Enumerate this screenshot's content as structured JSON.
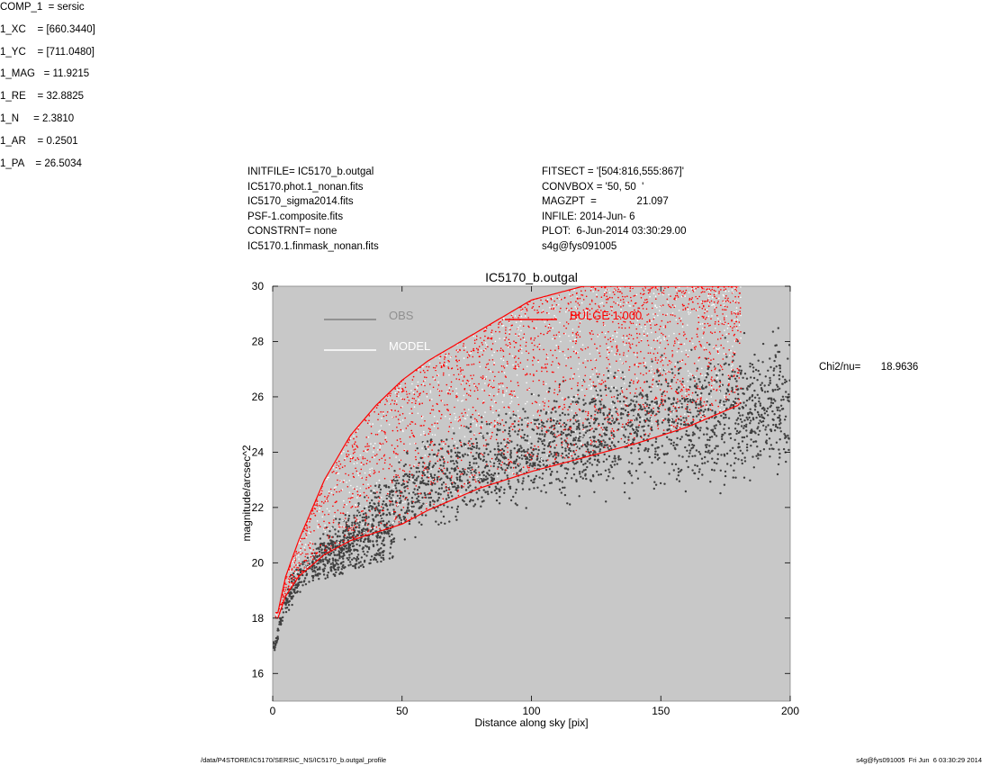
{
  "header_left": [
    "INITFILE= IC5170_b.outgal",
    "IC5170.phot.1_nonan.fits",
    "IC5170_sigma2014.fits",
    "PSF-1.composite.fits",
    "CONSTRNT= none",
    "IC5170.1.finmask_nonan.fits"
  ],
  "header_mid": [
    "FITSECT = '[504:816,555:867]'",
    "CONVBOX = '50, 50  '",
    "MAGZPT  =              21.097",
    "INFILE: 2014-Jun- 6",
    "PLOT:  6-Jun-2014 03:30:29.00",
    "s4g@fys091005"
  ],
  "components": [
    "COMP_1  = sersic",
    "1_XC    = [660.3440]",
    "1_YC    = [711.0480]",
    "1_MAG   = 11.9215",
    "1_RE    = 32.8825",
    "1_N     = 2.3810",
    "1_AR    = 0.2501",
    "1_PA    = 26.5034"
  ],
  "chi2": "Chi2/nu=       18.9636",
  "footer_left": "/data/P4STORE/IC5170/SERSIC_NS/IC5170_b.outgal_profile",
  "footer_right": "s4g@fys091005  Fri Jun  6 03:30:29 2014",
  "chart_data": {
    "type": "scatter",
    "title": "IC5170_b.outgal",
    "xlabel": "Distance along sky [pix]",
    "ylabel": "magnitude/arcsec^2",
    "xlim": [
      0,
      200
    ],
    "ylim": [
      30,
      15
    ],
    "y_inverted": true,
    "xticks": [
      0,
      50,
      100,
      150,
      200
    ],
    "yticks": [
      16,
      18,
      20,
      22,
      24,
      26,
      28,
      30
    ],
    "background_color": "#c8c8c8",
    "legend": [
      {
        "label": "OBS",
        "color": "#808080",
        "text_color": "#909090"
      },
      {
        "label": "MODEL",
        "color": "#ffffff",
        "text_color": "#ffffff"
      },
      {
        "label": "BULGE  1.000",
        "color": "#ff0000",
        "text_color": "#ff0000"
      }
    ],
    "series": [
      {
        "label": "OBS",
        "color": "#404040",
        "style": "points",
        "x": [
          1,
          3,
          5,
          10,
          20,
          30,
          40,
          50,
          60,
          80,
          100,
          120,
          140,
          160,
          180,
          200
        ],
        "y": [
          17.0,
          17.9,
          18.6,
          19.4,
          20.3,
          21.0,
          21.6,
          22.4,
          22.8,
          23.4,
          24.0,
          24.5,
          24.9,
          25.2,
          25.5,
          25.7
        ],
        "y_spread": [
          0.2,
          0.3,
          0.5,
          0.7,
          0.9,
          1.0,
          1.2,
          1.5,
          1.6,
          1.7,
          1.8,
          2.0,
          2.2,
          2.4,
          2.5,
          2.6
        ]
      },
      {
        "label": "BULGE  1.000",
        "color": "#ff0000",
        "style": "points",
        "x": [
          2,
          5,
          10,
          20,
          30,
          40,
          50,
          60,
          80,
          100,
          120,
          140,
          160,
          180
        ],
        "y_upper": [
          18.0,
          18.8,
          19.5,
          20.3,
          20.8,
          21.1,
          21.4,
          21.9,
          22.7,
          23.3,
          23.8,
          24.3,
          24.9,
          25.7
        ],
        "y_lower": [
          18.2,
          19.5,
          20.8,
          23.0,
          24.6,
          25.7,
          26.6,
          27.3,
          28.4,
          29.5,
          30.0,
          30.0,
          30.0,
          30.0
        ]
      }
    ]
  }
}
